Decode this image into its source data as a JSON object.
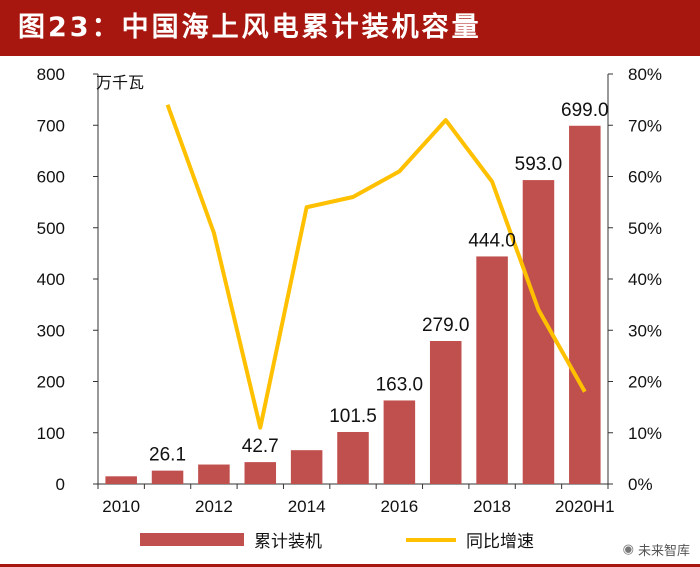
{
  "header": {
    "title": "图23：中国海上风电累计装机容量"
  },
  "watermark": {
    "text": "未来智库",
    "icon": "wechat-icon"
  },
  "chart_data": {
    "type": "bar+line",
    "y_unit_label": "万千瓦",
    "categories": [
      "2010",
      "2011",
      "2012",
      "2013",
      "2014",
      "2015",
      "2016",
      "2017",
      "2018",
      "2019",
      "2020H1"
    ],
    "x_tick_labels": [
      "2010",
      "2012",
      "2014",
      "2016",
      "2018",
      "2020H1"
    ],
    "x_tick_categories": [
      "2010",
      "2012",
      "2014",
      "2016",
      "2018",
      "2020H1"
    ],
    "bar_series": {
      "name": "累计装机",
      "color": "#c0504d",
      "values": [
        15,
        26.1,
        38,
        42.7,
        66,
        101.5,
        163.0,
        279.0,
        444.0,
        593.0,
        699.0
      ],
      "labels": [
        "",
        "26.1",
        "",
        "42.7",
        "",
        "101.5",
        "163.0",
        "279.0",
        "444.0",
        "593.0",
        "699.0"
      ]
    },
    "line_series": {
      "name": "同比增速",
      "color": "#ffc000",
      "x": [
        "2011",
        "2012",
        "2013",
        "2014",
        "2015",
        "2016",
        "2017",
        "2018",
        "2019",
        "2020H1"
      ],
      "values": [
        74,
        49,
        11,
        54,
        56,
        61,
        71,
        59,
        34,
        18
      ]
    },
    "y_left": {
      "ticks": [
        "0",
        "100",
        "200",
        "300",
        "400",
        "500",
        "600",
        "700",
        "800"
      ],
      "min": 0,
      "max": 800
    },
    "y_right": {
      "ticks": [
        "0%",
        "10%",
        "20%",
        "30%",
        "40%",
        "50%",
        "60%",
        "70%",
        "80%"
      ],
      "min": 0,
      "max": 80
    },
    "grid": false,
    "legend_position": "bottom"
  }
}
